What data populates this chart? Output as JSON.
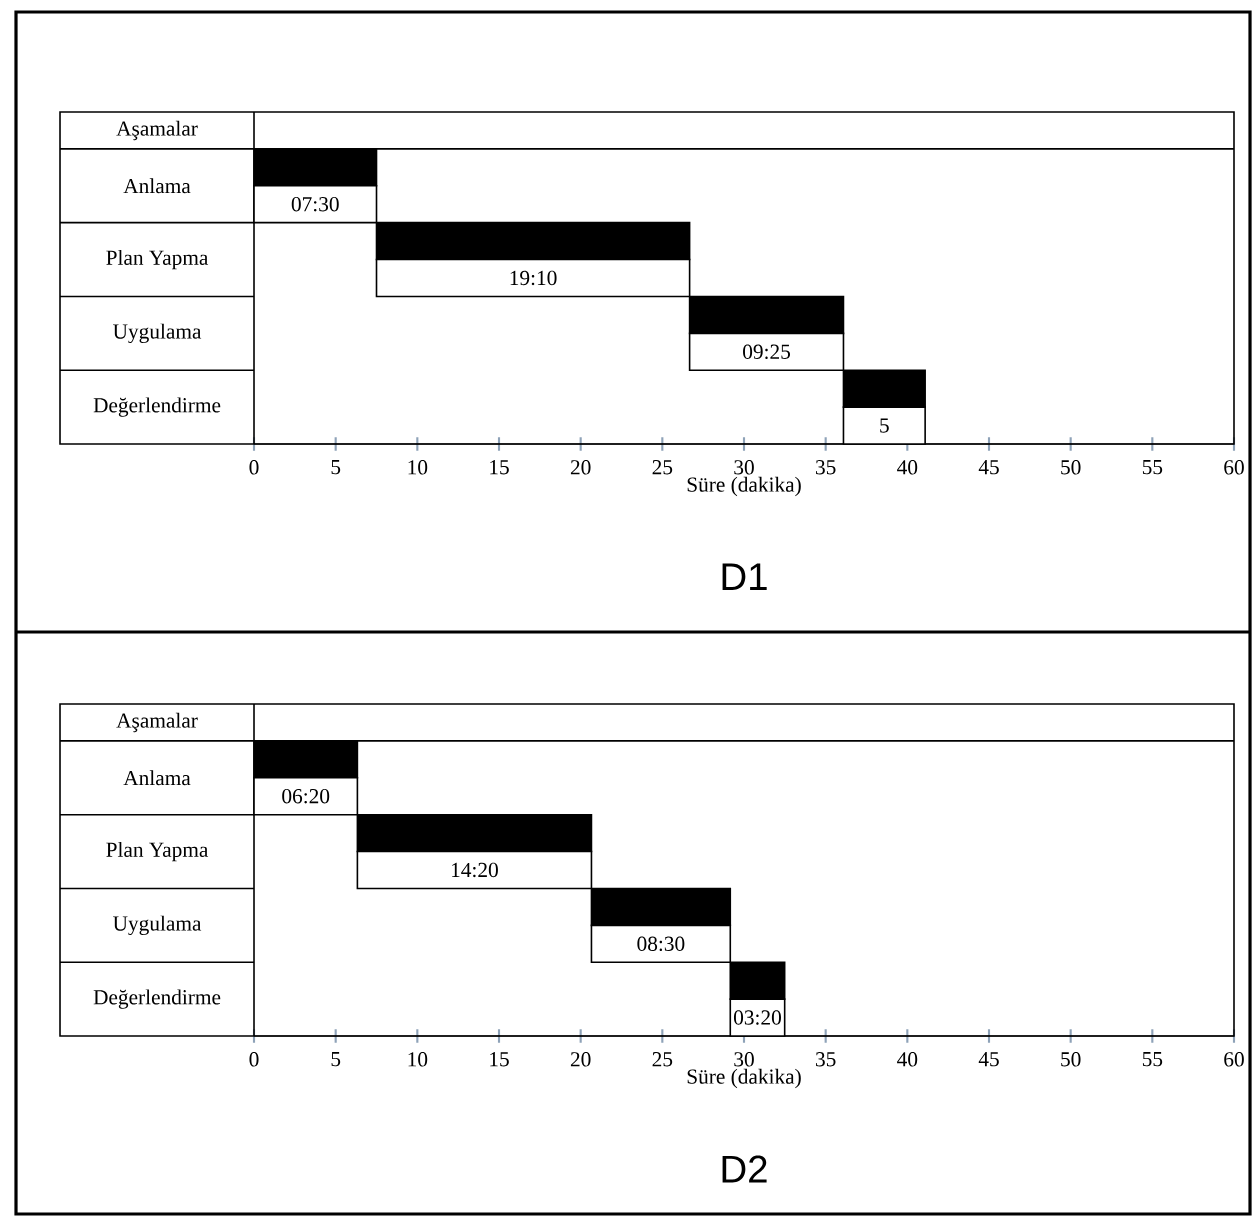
{
  "chart_data": [
    {
      "type": "bar",
      "orientation": "horizontal",
      "title": "D1",
      "xlabel": "Süre (dakika)",
      "ylabel": "Aşamalar",
      "categories": [
        "Anlama",
        "Plan Yapma",
        "Uygulama",
        "Değerlendirme"
      ],
      "series": [
        {
          "color": "#000000",
          "base": [
            0,
            7.5,
            26.67,
            36.09
          ],
          "values": [
            7.5,
            19.17,
            9.42,
            5
          ]
        },
        {
          "color": "#ffffff",
          "base": [
            0,
            7.5,
            26.67,
            36.09
          ],
          "values": [
            7.5,
            19.17,
            9.42,
            5
          ],
          "value_labels": [
            "07:30",
            "19:10",
            "09:25",
            "5"
          ]
        }
      ],
      "xlim": [
        0,
        60
      ],
      "xticks": [
        0,
        5,
        10,
        15,
        20,
        25,
        30,
        35,
        40,
        45,
        50,
        55,
        60
      ]
    },
    {
      "type": "bar",
      "orientation": "horizontal",
      "title": "D2",
      "xlabel": "Süre (dakika)",
      "ylabel": "Aşamalar",
      "categories": [
        "Anlama",
        "Plan Yapma",
        "Uygulama",
        "Değerlendirme"
      ],
      "series": [
        {
          "color": "#000000",
          "base": [
            0,
            6.33,
            20.66,
            29.16
          ],
          "values": [
            6.33,
            14.33,
            8.5,
            3.33
          ]
        },
        {
          "color": "#ffffff",
          "base": [
            0,
            6.33,
            20.66,
            29.16
          ],
          "values": [
            6.33,
            14.33,
            8.5,
            3.33
          ],
          "value_labels": [
            "06:20",
            "14:20",
            "08:30",
            "03:20"
          ]
        }
      ],
      "xlim": [
        0,
        60
      ],
      "xticks": [
        0,
        5,
        10,
        15,
        20,
        25,
        30,
        35,
        40,
        45,
        50,
        55,
        60
      ]
    }
  ]
}
